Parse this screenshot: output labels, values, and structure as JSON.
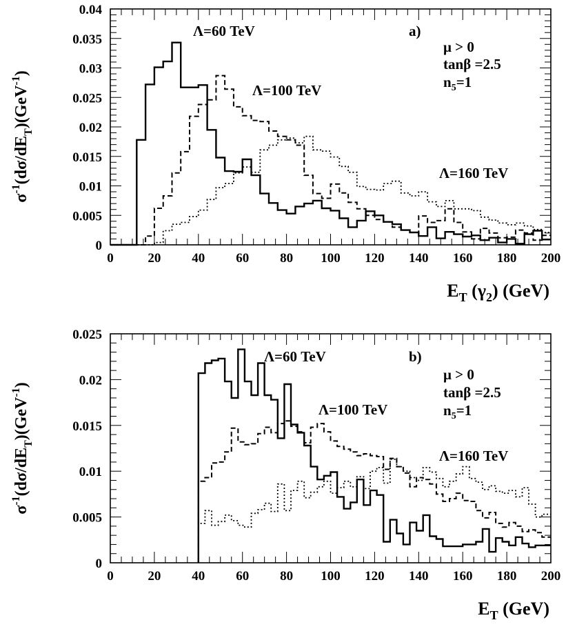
{
  "chart_data": [
    {
      "type": "line",
      "panel_label": "a)",
      "xlabel_main": "E",
      "xlabel_sub": "T",
      "xlabel_rest": " (γ",
      "xlabel_rest_sub": "2",
      "xlabel_end": ") (GeV)",
      "ylabel_parts": [
        "σ",
        "-1",
        "(dσ/dE",
        "T",
        ")(GeV",
        "-1",
        ")"
      ],
      "xlim": [
        0,
        200
      ],
      "ylim": [
        0,
        0.04
      ],
      "x_ticks": [
        "0",
        "20",
        "40",
        "60",
        "80",
        "100",
        "120",
        "140",
        "160",
        "180",
        "200"
      ],
      "x_tick_values": [
        0,
        20,
        40,
        60,
        80,
        100,
        120,
        140,
        160,
        180,
        200
      ],
      "y_ticks": [
        "0",
        "0.005",
        "0.01",
        "0.015",
        "0.02",
        "0.025",
        "0.03",
        "0.035",
        "0.04"
      ],
      "y_tick_values": [
        0,
        0.005,
        0.01,
        0.015,
        0.02,
        0.025,
        0.03,
        0.035,
        0.04
      ],
      "legend_lines": [
        "μ > 0",
        "tanβ =2.5",
        "n5=1"
      ],
      "legend_n5_main": "n",
      "legend_n5_sub": "5",
      "legend_n5_rest": "=1",
      "annotations": [
        "Λ=60 TeV",
        "Λ=100 TeV",
        "Λ=160 TeV"
      ],
      "bin_edges": [
        0,
        4,
        8,
        12,
        16,
        20,
        24,
        28,
        32,
        36,
        40,
        44,
        48,
        52,
        56,
        60,
        64,
        68,
        72,
        76,
        80,
        84,
        88,
        92,
        96,
        100,
        104,
        108,
        112,
        116,
        120,
        124,
        128,
        132,
        136,
        140,
        144,
        148,
        152,
        156,
        160,
        164,
        168,
        172,
        176,
        180,
        184,
        188,
        192,
        196,
        200
      ],
      "series": [
        {
          "name": "Λ=60 TeV",
          "style": "solid",
          "values": [
            0,
            0,
            0,
            0.0178,
            0.0272,
            0.0301,
            0.0311,
            0.0343,
            0.0267,
            0.0267,
            0.0271,
            0.0195,
            0.0148,
            0.0125,
            0.0124,
            0.0145,
            0.0118,
            0.0087,
            0.0071,
            0.0059,
            0.0053,
            0.0065,
            0.007,
            0.0075,
            0.0062,
            0.0058,
            0.0045,
            0.003,
            0.0041,
            0.0057,
            0.005,
            0.0039,
            0.0035,
            0.0025,
            0.0021,
            0.0015,
            0.003,
            0.0011,
            0.0022,
            0.0018,
            0.0014,
            0.0016,
            0.0008,
            0.0012,
            0.0004,
            0.001,
            0.0002,
            0.0018,
            0.0024,
            0.0009,
            0.001
          ]
        },
        {
          "name": "Λ=100 TeV",
          "style": "dashed",
          "values": [
            0,
            0,
            0,
            0,
            0.0015,
            0.0062,
            0.0083,
            0.0122,
            0.0158,
            0.0218,
            0.0238,
            0.0246,
            0.0287,
            0.0264,
            0.0234,
            0.0219,
            0.0211,
            0.0209,
            0.0193,
            0.0184,
            0.0178,
            0.0169,
            0.0118,
            0.0087,
            0.0079,
            0.0103,
            0.0088,
            0.0072,
            0.0061,
            0.005,
            0.0043,
            0.0039,
            0.003,
            0.0025,
            0.0021,
            0.0049,
            0.0038,
            0.0041,
            0.0061,
            0.0038,
            0.0022,
            0.001,
            0.0028,
            0.002,
            0.0012,
            0.0013,
            0.0025,
            0.002,
            0.0008,
            0.0016,
            0.0012
          ]
        },
        {
          "name": "Λ=160 TeV",
          "style": "dotted",
          "values": [
            0,
            0,
            0,
            0,
            0,
            0.0004,
            0.0024,
            0.0035,
            0.0038,
            0.0048,
            0.0059,
            0.0077,
            0.0097,
            0.0104,
            0.0122,
            0.0132,
            0.0123,
            0.0161,
            0.0169,
            0.0178,
            0.0181,
            0.0173,
            0.0184,
            0.0161,
            0.0159,
            0.0149,
            0.0133,
            0.0123,
            0.0099,
            0.0094,
            0.0093,
            0.0104,
            0.0108,
            0.0088,
            0.0083,
            0.009,
            0.0073,
            0.0065,
            0.0075,
            0.0061,
            0.0061,
            0.0058,
            0.0047,
            0.0042,
            0.0037,
            0.0034,
            0.0037,
            0.0032,
            0.0026,
            0.0021,
            0.0029
          ]
        }
      ]
    },
    {
      "type": "line",
      "panel_label": "b)",
      "xlabel_main": "E",
      "xlabel_sub": "T",
      "xlabel_end": " (GeV)",
      "ylabel_parts": [
        "σ",
        "-1",
        "(dσ/dE",
        "T",
        ")(GeV",
        "-1",
        ")"
      ],
      "xlim": [
        0,
        200
      ],
      "ylim": [
        0,
        0.025
      ],
      "x_ticks": [
        "0",
        "20",
        "40",
        "60",
        "80",
        "100",
        "120",
        "140",
        "160",
        "180",
        "200"
      ],
      "x_tick_values": [
        0,
        20,
        40,
        60,
        80,
        100,
        120,
        140,
        160,
        180,
        200
      ],
      "y_ticks": [
        "0",
        "0.005",
        "0.01",
        "0.015",
        "0.02",
        "0.025"
      ],
      "y_tick_values": [
        0,
        0.005,
        0.01,
        0.015,
        0.02,
        0.025
      ],
      "legend_lines": [
        "μ > 0",
        "tanβ =2.5",
        "n5=1"
      ],
      "legend_n5_main": "n",
      "legend_n5_sub": "5",
      "legend_n5_rest": "=1",
      "annotations": [
        "Λ=60 TeV",
        "Λ=100 TeV",
        "Λ=160 TeV"
      ],
      "bin_edges": [
        40,
        43,
        46,
        49,
        52,
        55,
        58,
        61,
        64,
        67,
        70,
        73,
        76,
        79,
        82,
        85,
        88,
        91,
        94,
        97,
        100,
        103,
        106,
        109,
        112,
        115,
        118,
        121,
        124,
        127,
        130,
        133,
        136,
        139,
        142,
        145,
        148,
        151,
        154,
        157,
        160,
        163,
        166,
        169,
        172,
        175,
        178,
        181,
        184,
        187,
        190,
        193,
        196,
        200
      ],
      "series": [
        {
          "name": "Λ=60 TeV",
          "style": "solid",
          "values": [
            0.0207,
            0.0218,
            0.0221,
            0.0223,
            0.0198,
            0.018,
            0.0233,
            0.0198,
            0.0183,
            0.0218,
            0.0183,
            0.0178,
            0.0136,
            0.0195,
            0.0151,
            0.0142,
            0.0128,
            0.0105,
            0.0091,
            0.0095,
            0.0099,
            0.0072,
            0.0059,
            0.0066,
            0.0091,
            0.0063,
            0.0079,
            0.0074,
            0.0023,
            0.0047,
            0.0032,
            0.002,
            0.0044,
            0.0035,
            0.0052,
            0.0029,
            0.0026,
            0.0018,
            0.0018,
            0.0018,
            0.002,
            0.002,
            0.0023,
            0.0037,
            0.0012,
            0.0027,
            0.0023,
            0.0019,
            0.0028,
            0.0021,
            0.0017,
            0.0019,
            0.0019
          ]
        },
        {
          "name": "Λ=100 TeV",
          "style": "dashed",
          "values": [
            0.0089,
            0.0093,
            0.0109,
            0.011,
            0.0121,
            0.0147,
            0.0132,
            0.0129,
            0.013,
            0.0141,
            0.0148,
            0.0142,
            0.0152,
            0.0155,
            0.0149,
            0.0143,
            0.0131,
            0.0148,
            0.0152,
            0.0143,
            0.0133,
            0.0127,
            0.0124,
            0.0121,
            0.0117,
            0.0119,
            0.0117,
            0.0116,
            0.0102,
            0.0114,
            0.0105,
            0.0098,
            0.0083,
            0.0093,
            0.0091,
            0.0086,
            0.0075,
            0.0067,
            0.007,
            0.0076,
            0.0068,
            0.0067,
            0.0057,
            0.0049,
            0.0055,
            0.0043,
            0.0039,
            0.0044,
            0.004,
            0.0034,
            0.0036,
            0.0033,
            0.0028
          ]
        },
        {
          "name": "Λ=160 TeV",
          "style": "dotted",
          "values": [
            0.0043,
            0.0057,
            0.0041,
            0.0045,
            0.0052,
            0.0046,
            0.0041,
            0.0039,
            0.0054,
            0.0058,
            0.0065,
            0.0056,
            0.0086,
            0.0057,
            0.0079,
            0.0089,
            0.0071,
            0.0077,
            0.0083,
            0.0089,
            0.0076,
            0.0082,
            0.0089,
            0.0083,
            0.0094,
            0.0081,
            0.01,
            0.0104,
            0.0087,
            0.0113,
            0.0105,
            0.01,
            0.0093,
            0.009,
            0.0104,
            0.0099,
            0.0092,
            0.0083,
            0.0089,
            0.0097,
            0.0105,
            0.0092,
            0.0088,
            0.008,
            0.0084,
            0.0078,
            0.0076,
            0.0079,
            0.0072,
            0.0082,
            0.0064,
            0.005,
            0.0053
          ]
        }
      ]
    }
  ]
}
